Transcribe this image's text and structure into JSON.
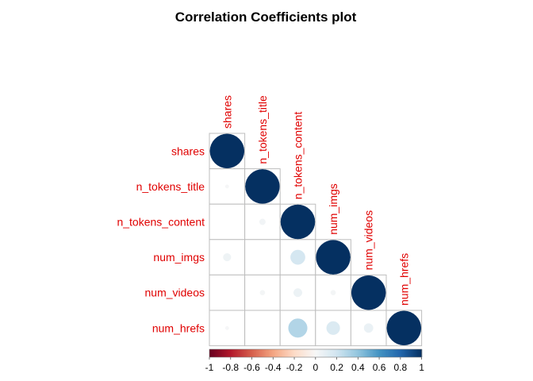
{
  "chart_data": {
    "type": "heatmap",
    "subtype": "correlation-circle-plot-lower-triangle",
    "title": "Correlation Coefficients plot",
    "variables": [
      "shares",
      "n_tokens_title",
      "n_tokens_content",
      "num_imgs",
      "num_videos",
      "num_hrefs"
    ],
    "matrix": [
      [
        1.0,
        0.01,
        0.0,
        0.05,
        0.0,
        0.01
      ],
      [
        0.01,
        1.0,
        0.03,
        0.0,
        0.02,
        0.0
      ],
      [
        0.0,
        0.03,
        1.0,
        0.18,
        0.06,
        0.3
      ],
      [
        0.05,
        0.0,
        0.18,
        1.0,
        0.02,
        0.15
      ],
      [
        0.0,
        0.02,
        0.06,
        0.02,
        1.0,
        0.07
      ],
      [
        0.01,
        0.0,
        0.3,
        0.15,
        0.07,
        1.0
      ]
    ],
    "colorbar": {
      "range": [
        -1,
        1
      ],
      "ticks": [
        "-1",
        "-0.8",
        "-0.6",
        "-0.4",
        "-0.2",
        "0",
        "0.2",
        "0.4",
        "0.6",
        "0.8",
        "1"
      ],
      "low_color": "#67001F",
      "mid_color": "#F7F7F7",
      "high_color": "#053061"
    },
    "label_color": "#E00000",
    "grid": true,
    "legend": "bottom"
  }
}
